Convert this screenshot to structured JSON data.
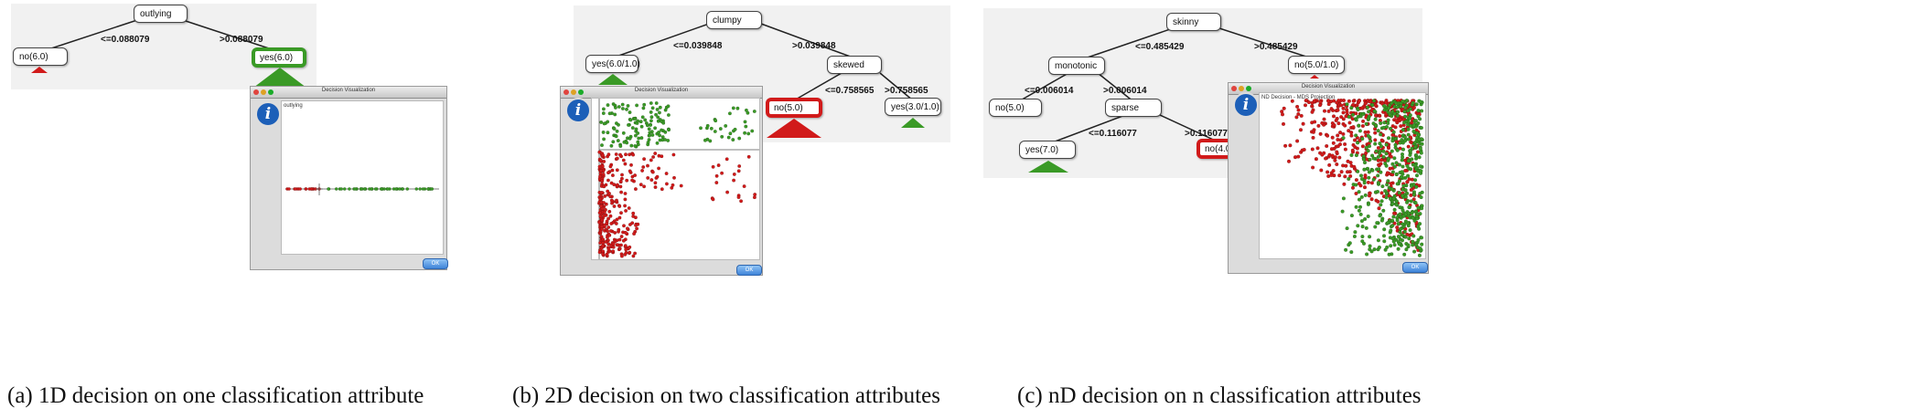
{
  "panels": {
    "a": {
      "caption": "(a)  1D decision on one classification attribute",
      "root": "outlying",
      "left_edge": "<=0.088079",
      "right_edge": ">0.088079",
      "left_leaf": "no(6.0)",
      "right_leaf": "yes(6.0)",
      "window": {
        "title": "Decision Visualization",
        "plot_title": "outlying",
        "ok": "OK"
      }
    },
    "b": {
      "caption": "(b)  2D decision on two classification attributes",
      "root": "clumpy",
      "left_edge": "<=0.039848",
      "right_edge": ">0.039848",
      "left_leaf": "yes(6.0/1.0)",
      "mid_node": "skewed",
      "mid_left_edge": "<=0.758565",
      "mid_right_edge": ">0.758565",
      "mid_left_leaf": "no(5.0)",
      "mid_right_leaf": "yes(3.0/1.0)",
      "window": {
        "title": "Decision Visualization",
        "ok": "OK"
      }
    },
    "c": {
      "caption": "(c)  nD decision on n classification attributes",
      "root": "skinny",
      "left_edge": "<=0.485429",
      "right_edge": ">0.485429",
      "right_leaf": "no(5.0/1.0)",
      "mid_node": "monotonic",
      "mid_left_edge": "<=0.006014",
      "mid_right_edge": ">0.006014",
      "mid_left_leaf": "no(5.0)",
      "sub_node": "sparse",
      "sub_left_edge": "<=0.116077",
      "sub_right_edge": ">0.116077",
      "sub_left_leaf": "yes(7.0)",
      "sub_right_leaf": "no(4.0/",
      "window": {
        "title": "Decision Visualization",
        "plot_title": "ND Decision - MDS Projection",
        "ok": "OK"
      }
    }
  },
  "colors": {
    "yes": "#3a9a26",
    "no": "#d11a1a",
    "highlight_window": "#dcdcdc"
  }
}
